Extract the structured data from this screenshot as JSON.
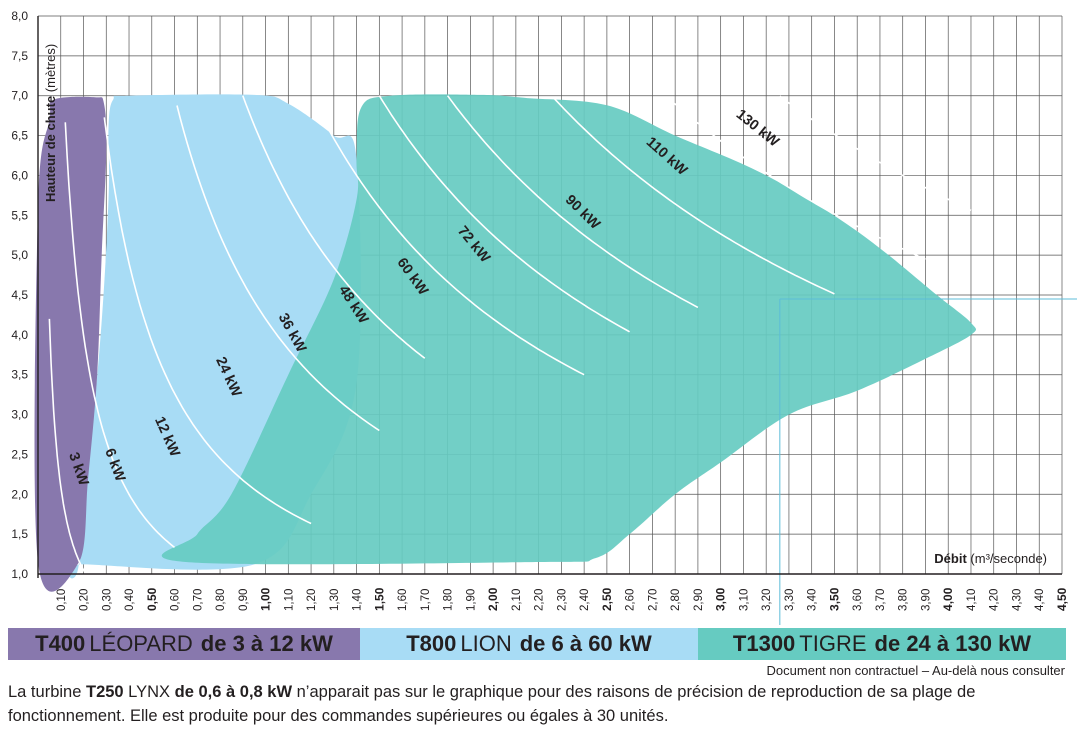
{
  "chart_data": {
    "type": "area",
    "xlabel": "Débit",
    "xlabel_unit": "(m³/seconde)",
    "ylabel": "Hauteur de chute",
    "ylabel_unit": "(mètres)",
    "xlim": [
      0.0,
      4.5
    ],
    "ylim": [
      1.0,
      8.0
    ],
    "x_tick_step": 0.1,
    "x_ticks_bold": [
      "0,50",
      "1,00",
      "1,50",
      "2,00",
      "2,50",
      "3,00",
      "3,50",
      "4,00",
      "4,50"
    ],
    "y_ticks": [
      "1,0",
      "1,5",
      "2,0",
      "2,5",
      "3,0",
      "3,5",
      "4,0",
      "4,5",
      "5,0",
      "5,5",
      "6,0",
      "6,5",
      "7,0",
      "7,5",
      "8,0"
    ],
    "grid": true,
    "series": [
      {
        "name": "T400 LÉOPARD",
        "color": "#8878ad",
        "region": [
          [
            0.0,
            1.15
          ],
          [
            0.0,
            5.6
          ],
          [
            0.05,
            6.7
          ],
          [
            0.07,
            6.95
          ],
          [
            0.25,
            6.98
          ],
          [
            0.29,
            6.9
          ],
          [
            0.3,
            6.3
          ],
          [
            0.28,
            5.0
          ],
          [
            0.26,
            3.5
          ],
          [
            0.22,
            2.2
          ],
          [
            0.18,
            1.15
          ]
        ]
      },
      {
        "name": "T800 LION",
        "color": "#a8dcf5",
        "region": [
          [
            0.18,
            1.15
          ],
          [
            0.27,
            3.8
          ],
          [
            0.31,
            5.7
          ],
          [
            0.31,
            6.6
          ],
          [
            0.33,
            6.95
          ],
          [
            0.4,
            7.0
          ],
          [
            0.95,
            7.01
          ],
          [
            1.1,
            6.9
          ],
          [
            1.3,
            6.5
          ],
          [
            1.4,
            6.2
          ],
          [
            1.4,
            3.4
          ],
          [
            1.2,
            2.0
          ],
          [
            0.95,
            1.12
          ],
          [
            0.2,
            1.12
          ]
        ]
      },
      {
        "name": "T1300 TIGRE",
        "color": "#66cbc1",
        "region": [
          [
            0.65,
            1.15
          ],
          [
            0.7,
            1.5
          ],
          [
            0.85,
            2.0
          ],
          [
            1.1,
            3.5
          ],
          [
            1.3,
            4.7
          ],
          [
            1.4,
            5.7
          ],
          [
            1.4,
            6.2
          ],
          [
            1.42,
            6.85
          ],
          [
            1.55,
            7.0
          ],
          [
            1.95,
            7.01
          ],
          [
            2.15,
            6.97
          ],
          [
            2.5,
            6.88
          ],
          [
            2.8,
            6.5
          ],
          [
            3.2,
            6.0
          ],
          [
            3.6,
            5.3
          ],
          [
            3.95,
            4.5
          ],
          [
            4.1,
            4.15
          ],
          [
            4.1,
            4.0
          ],
          [
            3.9,
            3.7
          ],
          [
            3.6,
            3.3
          ],
          [
            3.3,
            3.0
          ],
          [
            3.0,
            2.4
          ],
          [
            2.8,
            2.0
          ],
          [
            2.6,
            1.5
          ],
          [
            2.45,
            1.2
          ],
          [
            2.2,
            1.15
          ]
        ]
      }
    ],
    "power_curves": [
      {
        "label": "3 kW",
        "k": 0.21,
        "xmin": 0.05,
        "xmax": 0.28,
        "label_x": 0.16,
        "label_y": 2.3
      },
      {
        "label": "6 kW",
        "k": 0.8,
        "xmin": 0.12,
        "xmax": 0.6,
        "label_x": 0.32,
        "label_y": 2.35
      },
      {
        "label": "12 kW",
        "k": 1.96,
        "xmin": 0.26,
        "xmax": 1.2,
        "label_x": 0.55,
        "label_y": 2.7
      },
      {
        "label": "24 kW",
        "k": 4.2,
        "xmin": 0.58,
        "xmax": 1.5,
        "label_x": 0.82,
        "label_y": 3.45
      },
      {
        "label": "36 kW",
        "k": 6.3,
        "xmin": 0.9,
        "xmax": 1.7,
        "label_x": 1.1,
        "label_y": 4.0
      },
      {
        "label": "48 kW",
        "k": 8.4,
        "xmin": 1.2,
        "xmax": 2.4,
        "label_x": 1.37,
        "label_y": 4.35
      },
      {
        "label": "60 kW",
        "k": 10.5,
        "xmin": 1.5,
        "xmax": 2.6,
        "label_x": 1.63,
        "label_y": 4.7
      },
      {
        "label": "72 kW",
        "k": 12.6,
        "xmin": 1.8,
        "xmax": 2.9,
        "label_x": 1.9,
        "label_y": 5.1
      },
      {
        "label": "90 kW",
        "k": 15.8,
        "xmin": 2.25,
        "xmax": 3.5,
        "label_x": 2.38,
        "label_y": 5.5
      },
      {
        "label": "110 kW",
        "k": 19.3,
        "xmin": 2.75,
        "xmax": 3.9,
        "label_x": 2.75,
        "label_y": 6.2
      },
      {
        "label": "130 kW",
        "k": 22.8,
        "xmin": 3.26,
        "xmax": 4.1,
        "label_x": 3.15,
        "label_y": 6.55
      }
    ],
    "reference_lines": {
      "x": 3.26,
      "y": 4.45
    }
  },
  "legend": [
    {
      "name": "T400",
      "rest": "LÉOPARD",
      "range": "de 3 à 12 kW",
      "color": "#8878ad"
    },
    {
      "name": "T800",
      "rest": "LION",
      "range": "de 6 à 60 kW",
      "color": "#a8dcf5"
    },
    {
      "name": "T1300",
      "rest": "TIGRE",
      "range": "de 24 à 130 kW",
      "color": "#66cbc1"
    }
  ],
  "note": "Document non contractuel – Au-delà nous consulter",
  "footnote": {
    "part1": "La  turbine ",
    "model_bold": "T250",
    "part2": " LYNX ",
    "range_bold": "de 0,6 à 0,8 kW",
    "part3": " n’apparait pas sur le graphique pour des raisons de précision de reproduction de sa plage de fonctionnement. Elle est produite pour des commandes supérieures ou égales à 30 unités."
  }
}
